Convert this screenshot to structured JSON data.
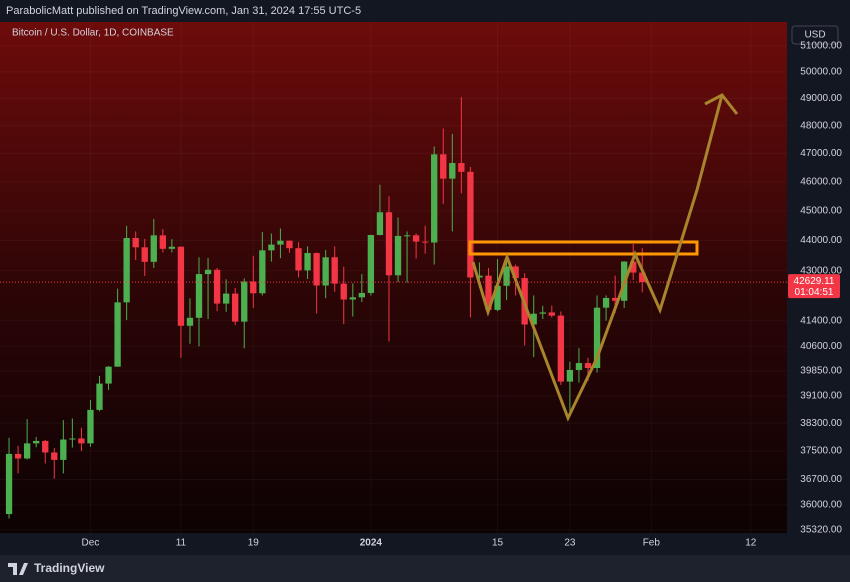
{
  "header": {
    "publisher": "ParabolicMatt published on TradingView.com, Jan 31, 2024 17:55 UTC-5",
    "brand": "TradingView"
  },
  "chart_data": {
    "type": "candlestick",
    "title": "Bitcoin / U.S. Dollar, 1D, COINBASE",
    "currency": "USD",
    "countdown": "01:04:51",
    "log_scale": true,
    "grid": true,
    "up_color": "#4caf50",
    "down_color": "#f23645",
    "x": [
      "2023-11-22",
      "2023-11-23",
      "2023-11-24",
      "2023-11-25",
      "2023-11-26",
      "2023-11-27",
      "2023-11-28",
      "2023-11-29",
      "2023-11-30",
      "2023-12-01",
      "2023-12-02",
      "2023-12-03",
      "2023-12-04",
      "2023-12-05",
      "2023-12-06",
      "2023-12-07",
      "2023-12-08",
      "2023-12-09",
      "2023-12-10",
      "2023-12-11",
      "2023-12-12",
      "2023-12-13",
      "2023-12-14",
      "2023-12-15",
      "2023-12-16",
      "2023-12-17",
      "2023-12-18",
      "2023-12-19",
      "2023-12-20",
      "2023-12-21",
      "2023-12-22",
      "2023-12-23",
      "2023-12-24",
      "2023-12-25",
      "2023-12-26",
      "2023-12-27",
      "2023-12-28",
      "2023-12-29",
      "2023-12-30",
      "2023-12-31",
      "2024-01-01",
      "2024-01-02",
      "2024-01-03",
      "2024-01-04",
      "2024-01-05",
      "2024-01-06",
      "2024-01-07",
      "2024-01-08",
      "2024-01-09",
      "2024-01-10",
      "2024-01-11",
      "2024-01-12",
      "2024-01-13",
      "2024-01-14",
      "2024-01-15",
      "2024-01-16",
      "2024-01-17",
      "2024-01-18",
      "2024-01-19",
      "2024-01-20",
      "2024-01-21",
      "2024-01-22",
      "2024-01-23",
      "2024-01-24",
      "2024-01-25",
      "2024-01-26",
      "2024-01-27",
      "2024-01-28",
      "2024-01-29",
      "2024-01-30",
      "2024-01-31"
    ],
    "open": [
      35750,
      37420,
      37290,
      37720,
      37790,
      37460,
      37250,
      37830,
      37860,
      37720,
      38690,
      39470,
      39980,
      41980,
      44080,
      43770,
      43290,
      44170,
      43720,
      43790,
      41240,
      41490,
      42890,
      43030,
      41940,
      42260,
      41370,
      42650,
      42270,
      43670,
      43860,
      43990,
      43740,
      43010,
      43580,
      42520,
      43440,
      42580,
      42070,
      42140,
      42280,
      44180,
      44950,
      42850,
      44150,
      44170,
      43960,
      43930,
      46970,
      46110,
      46660,
      46350,
      42780,
      42840,
      41740,
      42510,
      43140,
      42760,
      41280,
      41620,
      41660,
      41560,
      39530,
      39880,
      40090,
      39940,
      41810,
      42120,
      42030,
      43300,
      42940
    ],
    "high": [
      37880,
      37650,
      38420,
      37900,
      37820,
      37590,
      38390,
      38440,
      38170,
      38980,
      39700,
      40000,
      42420,
      44490,
      44300,
      44050,
      44720,
      44380,
      44040,
      43800,
      42110,
      43440,
      43420,
      43090,
      42720,
      42440,
      42750,
      43490,
      44280,
      44230,
      44400,
      44000,
      43940,
      43800,
      43600,
      43680,
      43800,
      43130,
      42590,
      42890,
      44190,
      45900,
      45500,
      44770,
      44300,
      44230,
      44490,
      47250,
      47900,
      47700,
      49050,
      46520,
      43270,
      43090,
      43380,
      43580,
      43200,
      42920,
      42200,
      41870,
      41880,
      41690,
      40130,
      40550,
      40250,
      42200,
      42200,
      42840,
      43310,
      43880,
      43740
    ],
    "low": [
      35630,
      36870,
      37260,
      37610,
      37150,
      36720,
      36870,
      37600,
      37500,
      37620,
      38650,
      39280,
      39980,
      41420,
      43350,
      42830,
      43090,
      43600,
      43600,
      40250,
      40680,
      40600,
      41450,
      41700,
      41680,
      41260,
      40540,
      41800,
      42200,
      43300,
      43410,
      43590,
      42780,
      42730,
      41630,
      42110,
      42320,
      41290,
      41530,
      41990,
      42200,
      44170,
      40750,
      42630,
      42610,
      43400,
      43560,
      43200,
      45240,
      44300,
      45600,
      41500,
      42440,
      41720,
      41700,
      42050,
      42200,
      40630,
      40270,
      41450,
      41500,
      39430,
      38560,
      39500,
      39550,
      39800,
      41400,
      41640,
      41800,
      42700,
      42300
    ],
    "close": [
      37420,
      37290,
      37720,
      37790,
      37460,
      37250,
      37830,
      37860,
      37720,
      38690,
      39470,
      39980,
      41980,
      44080,
      43770,
      43290,
      44170,
      43720,
      43790,
      41240,
      41490,
      42890,
      43030,
      41940,
      42260,
      41370,
      42650,
      42270,
      43670,
      43860,
      43990,
      43740,
      43010,
      43580,
      42520,
      43440,
      42580,
      42070,
      42140,
      42280,
      44180,
      44950,
      42850,
      44150,
      44170,
      43960,
      43930,
      46970,
      46110,
      46660,
      46350,
      42780,
      42840,
      41740,
      42510,
      43140,
      42760,
      41280,
      41620,
      41660,
      41560,
      39530,
      39880,
      40090,
      39940,
      41810,
      42120,
      42030,
      43300,
      42940,
      42629.11
    ],
    "xlim": [
      "2023-11-21",
      "2024-02-16"
    ],
    "xticks": [
      {
        "value": "2023-12-01",
        "label": "Dec"
      },
      {
        "value": "2023-12-11",
        "label": "11"
      },
      {
        "value": "2023-12-19",
        "label": "19"
      },
      {
        "value": "2024-01-01",
        "label": "2024"
      },
      {
        "value": "2024-01-15",
        "label": "15"
      },
      {
        "value": "2024-01-23",
        "label": "23"
      },
      {
        "value": "2024-02-01",
        "label": "Feb"
      },
      {
        "value": "2024-02-12",
        "label": "12"
      }
    ],
    "ylim": [
      35240,
      51930
    ],
    "yticks": [
      {
        "value": 35320,
        "label": "35320.00"
      },
      {
        "value": 36000,
        "label": "36000.00"
      },
      {
        "value": 36700,
        "label": "36700.00"
      },
      {
        "value": 37500,
        "label": "37500.00"
      },
      {
        "value": 38300,
        "label": "38300.00"
      },
      {
        "value": 39100,
        "label": "39100.00"
      },
      {
        "value": 39850,
        "label": "39850.00"
      },
      {
        "value": 40600,
        "label": "40600.00"
      },
      {
        "value": 41400,
        "label": "41400.00"
      },
      {
        "value": 43000,
        "label": "43000.00"
      },
      {
        "value": 44000,
        "label": "44000.00"
      },
      {
        "value": 45000,
        "label": "45000.00"
      },
      {
        "value": 46000,
        "label": "46000.00"
      },
      {
        "value": 47000,
        "label": "47000.00"
      },
      {
        "value": 48000,
        "label": "48000.00"
      },
      {
        "value": 49000,
        "label": "49000.00"
      },
      {
        "value": 50000,
        "label": "50000.00"
      },
      {
        "value": 51000,
        "label": "51000.00"
      }
    ]
  }
}
